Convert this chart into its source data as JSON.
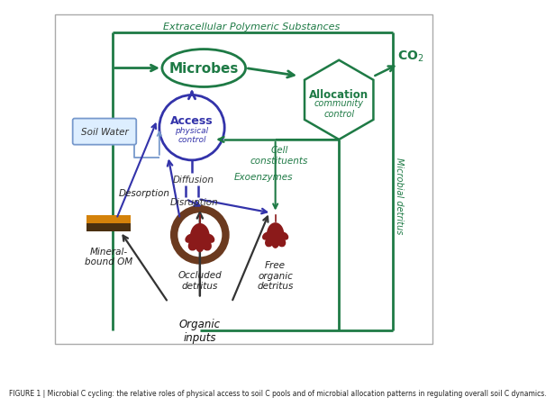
{
  "fig_label": "FIGURE 1 | Microbial C cycling: the relative roles of physical access to soil C pools and of microbial allocation patterns in regulating overall soil C dynamics.",
  "dark_green": "#1e7a45",
  "blue_purple": "#3333aa",
  "purple": "#7b3f8c",
  "dark_red": "#8b1a1a",
  "brown": "#6b3a1f",
  "orange": "#d4820a",
  "extracellular_text": "Extracellular Polymeric Substances",
  "microbes_text": "Microbes",
  "allocation_text": "Allocation",
  "community_control_text": "community\ncontrol",
  "access_text": "Access",
  "physical_control_text": "physical\ncontrol",
  "soil_water_text": "Soil Water",
  "diffusion_text": "Diffusion",
  "disruption_text": "Disruption",
  "desorption_text": "Desorption",
  "mineral_bound_om_text": "Mineral-\nbound OM",
  "occluded_detritus_text": "Occluded\ndetritus",
  "free_organic_detritus_text": "Free\norganic\ndetritus",
  "organic_inputs_text": "Organic\ninputs",
  "cell_constituents_text": "Cell\nconstituents",
  "exoenzymes_text": "Exoenzymes",
  "microbial_detritus_text": "Microbial detritus",
  "co2_text": "CO$_2$"
}
